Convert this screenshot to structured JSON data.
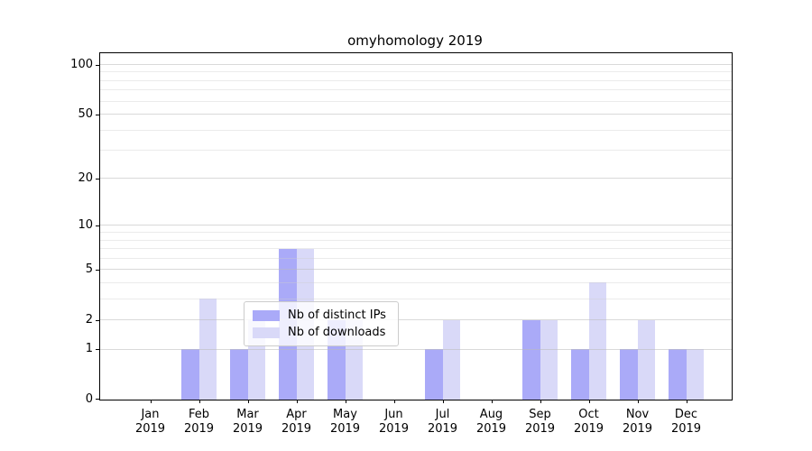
{
  "title": "omyhomology 2019",
  "colors": {
    "ips_bar": "#aaaaf8",
    "downloads_bar": "#d9d9f8",
    "grid_major": "rgba(185,185,185,0.55)",
    "grid_minor": "rgba(205,205,205,0.40)",
    "spine": "#000000",
    "legend_border": "#cccccc",
    "background": "#ffffff"
  },
  "chart_data": {
    "type": "bar",
    "title": "omyhomology 2019",
    "categories": [
      "Jan",
      "Feb",
      "Mar",
      "Apr",
      "May",
      "Jun",
      "Jul",
      "Aug",
      "Sep",
      "Oct",
      "Nov",
      "Dec"
    ],
    "x_year": "2019",
    "series": [
      {
        "name": "Nb of distinct IPs",
        "color": "#aaaaf8",
        "values": [
          0,
          1,
          1,
          7,
          2,
          0,
          1,
          0,
          2,
          1,
          1,
          1
        ]
      },
      {
        "name": "Nb of downloads",
        "color": "#d9d9f8",
        "values": [
          0,
          3,
          2,
          7,
          2,
          0,
          2,
          0,
          2,
          4,
          2,
          1
        ]
      }
    ],
    "yscale": "log1p",
    "ylim": [
      0,
      117
    ],
    "y_ticks": [
      0,
      1,
      2,
      5,
      10,
      20,
      50,
      100
    ],
    "y_minor_ticks": [
      3,
      4,
      6,
      7,
      8,
      9,
      30,
      40,
      60,
      70,
      80,
      90
    ],
    "grid": "horizontal",
    "legend_position": "lower-center"
  },
  "legend": {
    "items": [
      {
        "label": "Nb of distinct IPs",
        "color": "#aaaaf8"
      },
      {
        "label": "Nb of downloads",
        "color": "#d9d9f8"
      }
    ]
  }
}
